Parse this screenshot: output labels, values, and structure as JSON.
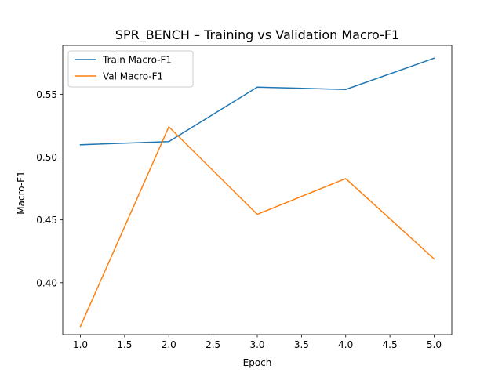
{
  "chart_data": {
    "type": "line",
    "title": "SPR_BENCH – Training vs Validation Macro-F1",
    "xlabel": "Epoch",
    "ylabel": "Macro-F1",
    "x": [
      1,
      2,
      3,
      4,
      5
    ],
    "xlim": [
      0.8,
      5.2
    ],
    "ylim": [
      0.3587,
      0.5889
    ],
    "xticks": [
      1.0,
      1.5,
      2.0,
      2.5,
      3.0,
      3.5,
      4.0,
      4.5,
      5.0
    ],
    "xtick_labels": [
      "1.0",
      "1.5",
      "2.0",
      "2.5",
      "3.0",
      "3.5",
      "4.0",
      "4.5",
      "5.0"
    ],
    "yticks": [
      0.4,
      0.45,
      0.5,
      0.55
    ],
    "ytick_labels": [
      "0.40",
      "0.45",
      "0.50",
      "0.55"
    ],
    "grid": false,
    "legend_position": "top-left",
    "series": [
      {
        "name": "Train Macro-F1",
        "color": "#1f77b4",
        "values": [
          0.5098,
          0.5123,
          0.5557,
          0.5538,
          0.5787
        ]
      },
      {
        "name": "Val Macro-F1",
        "color": "#ff7f0e",
        "values": [
          0.3652,
          0.5241,
          0.4544,
          0.4829,
          0.4189
        ]
      }
    ]
  }
}
